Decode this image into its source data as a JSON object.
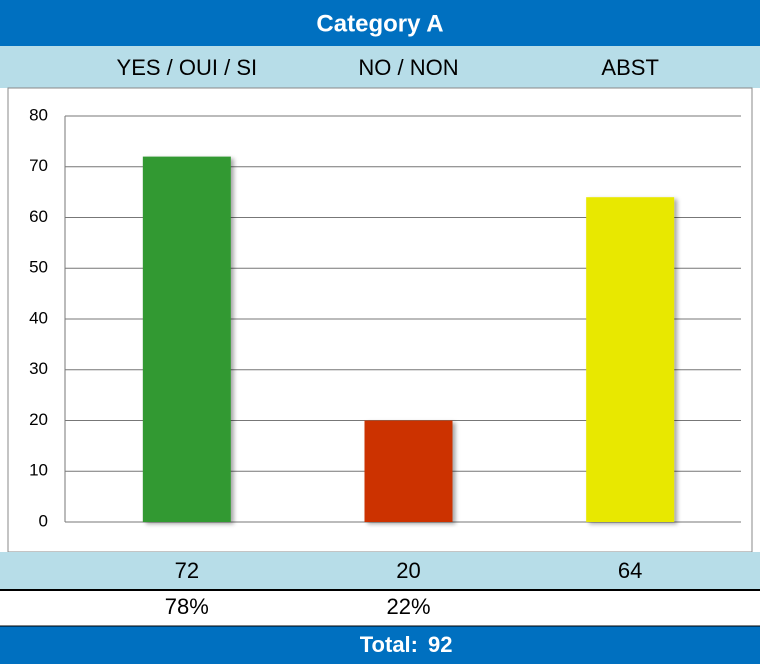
{
  "chart_data": {
    "type": "bar",
    "title": "Category A",
    "categories": [
      "YES / OUI / SI",
      "NO / NON",
      "ABST"
    ],
    "values": [
      72,
      20,
      64
    ],
    "colors": [
      "#339933",
      "#cc3300",
      "#e8e800"
    ],
    "percent_labels": [
      "78%",
      "22%"
    ],
    "total_label": "Total:",
    "total": 92,
    "ylim": [
      0,
      80
    ],
    "yticks": [
      0,
      10,
      20,
      30,
      40,
      50,
      60,
      70,
      80
    ],
    "grid": true
  }
}
